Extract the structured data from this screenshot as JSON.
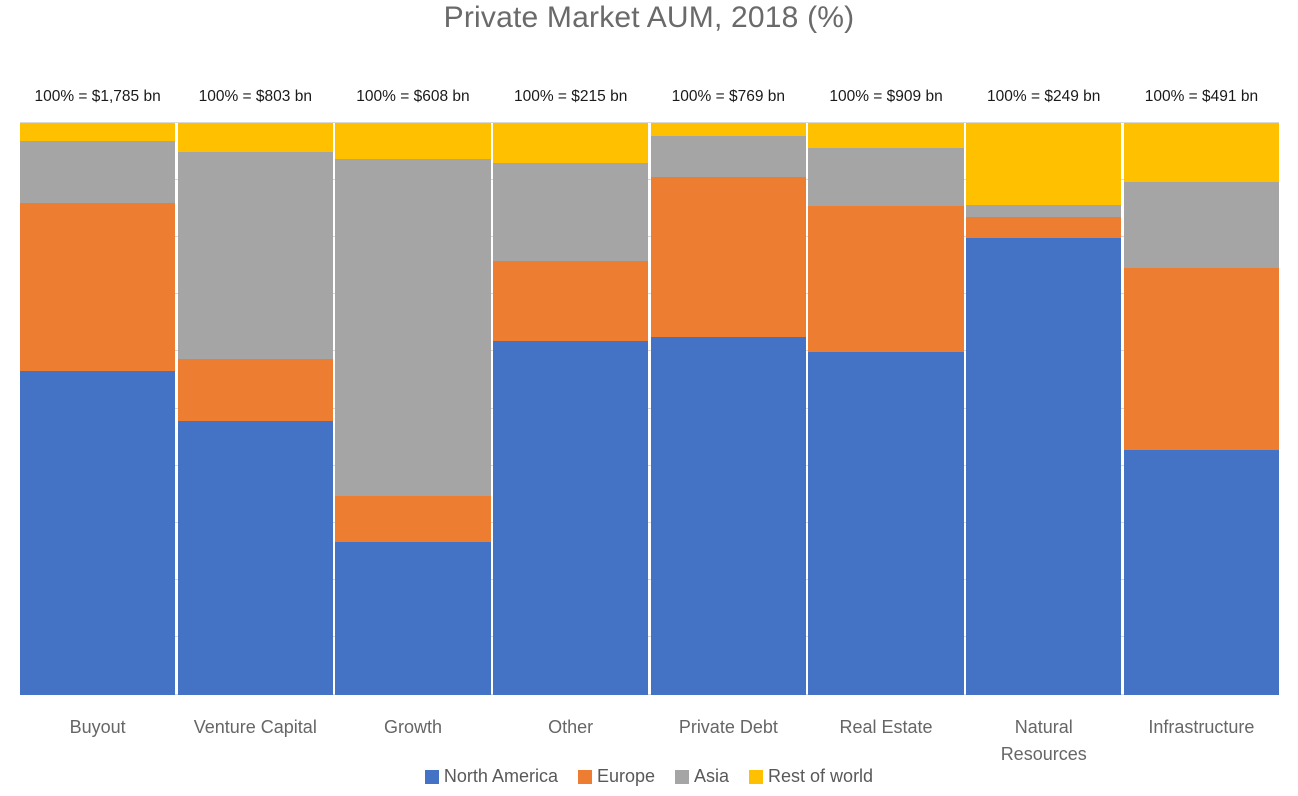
{
  "title": "Private Market AUM, 2018 (%)",
  "colors": {
    "north_america": "#4472C4",
    "europe": "#ED7D31",
    "asia": "#A5A5A5",
    "rest_of_world": "#FFC000",
    "gridline": "#D9D9D9",
    "title_text": "#6A6A6A",
    "axis_text": "#666666",
    "legend_text": "#595959"
  },
  "legend": {
    "items": [
      {
        "label": "North America",
        "color": "#4472C4"
      },
      {
        "label": "Europe",
        "color": "#ED7D31"
      },
      {
        "label": "Asia",
        "color": "#A5A5A5"
      },
      {
        "label": "Rest of world",
        "color": "#FFC000"
      }
    ]
  },
  "column_totals": [
    "100% = $1,785 bn",
    "100% = $803 bn",
    "100% = $608 bn",
    "100% = $215 bn",
    "100% = $769 bn",
    "100% = $909 bn",
    "100% = $249 bn",
    "100% = $491 bn"
  ],
  "x_axis_labels": [
    "Buyout",
    "Venture Capital",
    "Growth",
    "Other",
    "Private Debt",
    "Real Estate",
    "Natural\nResources",
    "Infrastructure"
  ],
  "chart_data": {
    "type": "bar",
    "subtype": "100%-stacked-vertical",
    "title": "Private Market AUM, 2018 (%)",
    "categories": [
      "Buyout",
      "Venture Capital",
      "Growth",
      "Other",
      "Private Debt",
      "Real Estate",
      "Natural Resources",
      "Infrastructure"
    ],
    "category_totals_bn_usd": [
      1785,
      803,
      608,
      215,
      769,
      909,
      249,
      491
    ],
    "series": [
      {
        "name": "North America",
        "color": "#4472C4",
        "values": [
          56.6,
          47.9,
          26.7,
          61.9,
          62.6,
          60.0,
          79.9,
          42.8
        ]
      },
      {
        "name": "Europe",
        "color": "#ED7D31",
        "values": [
          29.4,
          10.8,
          8.1,
          14.0,
          28.0,
          25.5,
          3.7,
          31.8
        ]
      },
      {
        "name": "Asia",
        "color": "#A5A5A5",
        "values": [
          10.9,
          36.2,
          58.9,
          17.1,
          7.2,
          10.1,
          2.1,
          15.1
        ]
      },
      {
        "name": "Rest of world",
        "color": "#FFC000",
        "values": [
          3.1,
          5.1,
          6.3,
          7.0,
          2.2,
          4.4,
          14.3,
          10.3
        ]
      }
    ],
    "stack_order_bottom_to_top": [
      "North America",
      "Europe",
      "Asia",
      "Rest of world"
    ],
    "ylim": [
      0,
      100
    ],
    "gridlines": "horizontal every 10%, visible in column gaps",
    "legend_position": "bottom"
  }
}
